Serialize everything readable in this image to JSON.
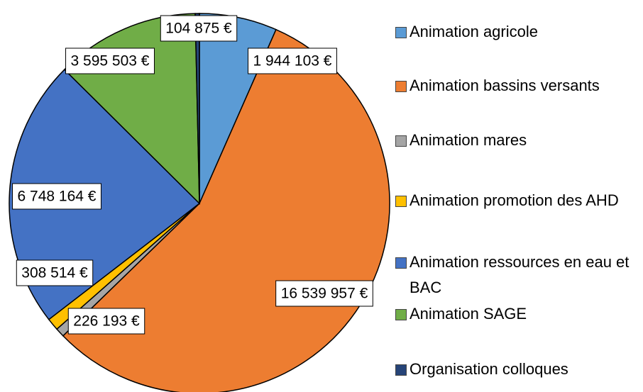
{
  "chart_data": {
    "type": "pie",
    "categories": [
      "Animation agricole",
      "Animation bassins versants",
      "Animation mares",
      "Animation promotion des AHD",
      "Animation ressources en eau et BAC",
      "Animation SAGE",
      "Organisation colloques"
    ],
    "values": [
      1944103,
      16539957,
      226193,
      308514,
      6748164,
      3595503,
      104875
    ],
    "value_labels": [
      "1 944 103 €",
      "16 539 957 €",
      "226 193 €",
      "308 514 €",
      "6 748 164 €",
      "3 595 503 €",
      "104 875 €"
    ],
    "colors": [
      "#5b9bd5",
      "#ed7d31",
      "#a5a5a5",
      "#ffc000",
      "#4472c4",
      "#70ad47",
      "#264478"
    ],
    "legend": "right"
  }
}
